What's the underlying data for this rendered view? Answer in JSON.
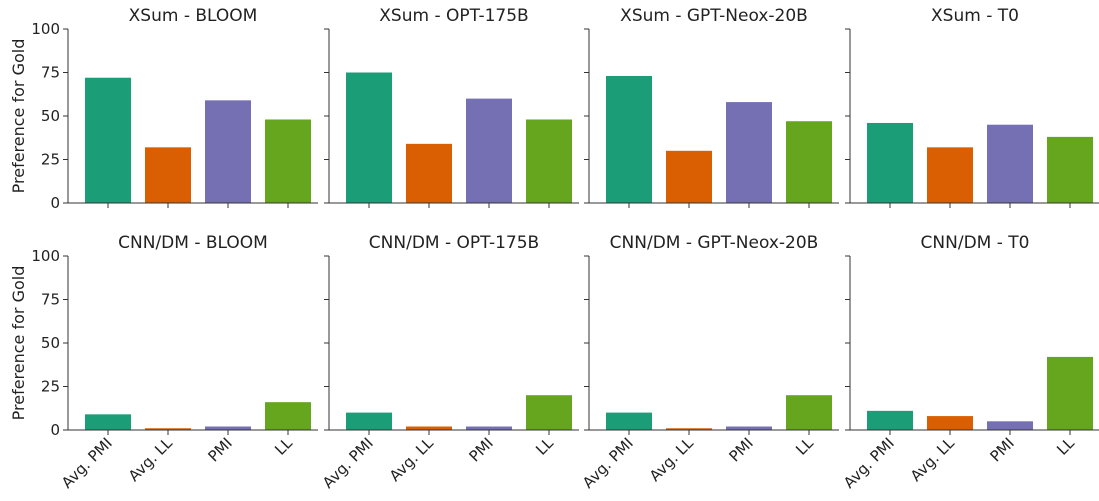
{
  "chart_data": {
    "type": "bar",
    "grid": false,
    "legend": "none",
    "ylabel": "Preference for Gold",
    "ylim": [
      0,
      100
    ],
    "yticks": [
      0,
      25,
      50,
      75,
      100
    ],
    "categories": [
      "Avg. PMI",
      "Avg. LL",
      "PMI",
      "LL"
    ],
    "colors": [
      "#1b9e77",
      "#d95f02",
      "#7570b3",
      "#66a61e"
    ],
    "panels": [
      {
        "title": "XSum - BLOOM",
        "values": [
          72,
          32,
          59,
          48
        ]
      },
      {
        "title": "XSum - OPT-175B",
        "values": [
          75,
          34,
          60,
          48
        ]
      },
      {
        "title": "XSum - GPT-Neox-20B",
        "values": [
          73,
          30,
          58,
          47
        ]
      },
      {
        "title": "XSum - T0",
        "values": [
          46,
          32,
          45,
          38
        ]
      },
      {
        "title": "CNN/DM - BLOOM",
        "values": [
          9,
          1,
          2,
          16
        ]
      },
      {
        "title": "CNN/DM - OPT-175B",
        "values": [
          10,
          2,
          2,
          20
        ]
      },
      {
        "title": "CNN/DM - GPT-Neox-20B",
        "values": [
          10,
          1,
          2,
          20
        ]
      },
      {
        "title": "CNN/DM - T0",
        "values": [
          11,
          8,
          5,
          42
        ]
      }
    ]
  }
}
